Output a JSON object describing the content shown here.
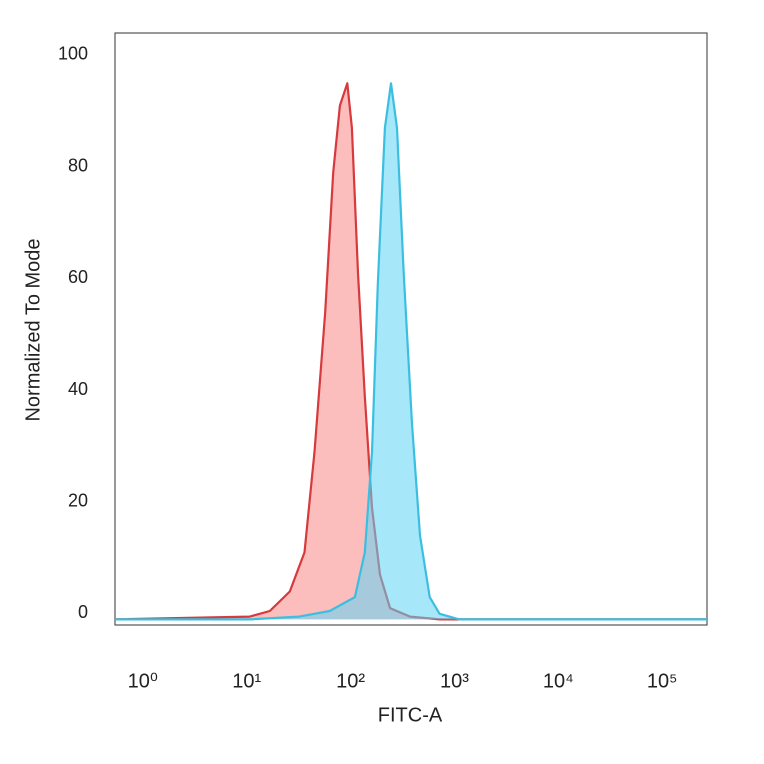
{
  "chart_data": {
    "type": "area",
    "xlabel": "FITC-A",
    "ylabel": "Normalized To Mode",
    "xscale": "log",
    "xlim": [
      0.54,
      270000
    ],
    "ylim": [
      -1,
      105
    ],
    "xticks": [
      {
        "value": 1,
        "label": "10⁰"
      },
      {
        "value": 10,
        "label": "10¹"
      },
      {
        "value": 100,
        "label": "10²"
      },
      {
        "value": 1000,
        "label": "10³"
      },
      {
        "value": 10000,
        "label": "10⁴"
      },
      {
        "value": 100000,
        "label": "10⁵"
      }
    ],
    "yticks": [
      0,
      20,
      40,
      60,
      80,
      100
    ],
    "grid": false,
    "series": [
      {
        "color": "#d63a3c",
        "fill": "#f98686",
        "x": [
          0.54,
          10.7,
          16.7,
          26,
          36,
          45,
          57,
          68,
          79,
          93,
          103,
          118,
          137,
          161,
          192,
          240,
          374,
          720,
          270000
        ],
        "values": [
          0,
          0.5,
          1.5,
          5,
          12,
          30,
          55,
          80,
          92,
          96,
          88,
          62,
          40,
          20,
          8,
          2,
          0.5,
          0,
          0
        ]
      },
      {
        "color": "#3bbfe0",
        "fill": "#5fd3f5",
        "x": [
          0.54,
          10.7,
          32,
          63,
          110,
          137,
          161,
          183,
          214,
          245,
          280,
          325,
          390,
          466,
          578,
          720,
          1120,
          270000
        ],
        "values": [
          0,
          0,
          0.5,
          1.5,
          4,
          12,
          30,
          60,
          88,
          96,
          88,
          62,
          35,
          15,
          4,
          1,
          0,
          0
        ]
      }
    ]
  }
}
